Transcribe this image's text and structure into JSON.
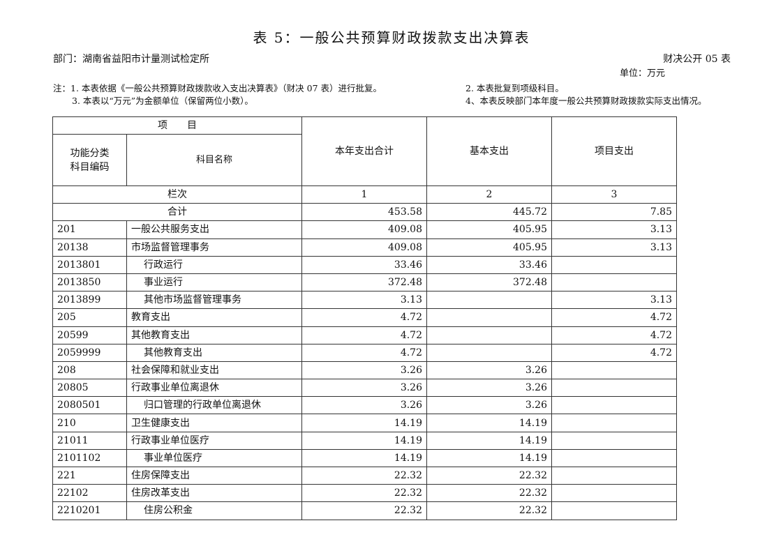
{
  "title": "表 5：一般公共预算财政拨款支出决算表",
  "department": "部门：湖南省益阳市计量测试检定所",
  "form_no": "财决公开 05 表",
  "unit": "单位：万元",
  "notes": [
    "注：1. 本表依据《一般公共预算财政拨款收入支出决算表》（财决 07 表）进行批复。",
    "2. 本表批复到项级科目。",
    "3. 本表以“万元”为金额单位（保留两位小数）。",
    "4、本表反映部门本年度一般公共预算财政拨款实际支出情况。"
  ],
  "table": {
    "header_item": "项　　目",
    "header_code": "功能分类\n科目编码",
    "header_code_line1": "功能分类",
    "header_code_line2": "科目编码",
    "header_name": "科目名称",
    "header_total": "本年支出合计",
    "header_basic": "基本支出",
    "header_project": "项目支出",
    "col_index_label": "栏次",
    "col_index": [
      "1",
      "2",
      "3"
    ],
    "total_label": "合计",
    "total": [
      "453.58",
      "445.72",
      "7.85"
    ],
    "rows": [
      {
        "code": "201",
        "name": "一般公共服务支出",
        "total": "409.08",
        "basic": "405.95",
        "project": "3.13"
      },
      {
        "code": "20138",
        "name": "市场监督管理事务",
        "total": "409.08",
        "basic": "405.95",
        "project": "3.13"
      },
      {
        "code": "2013801",
        "name": "行政运行",
        "total": "33.46",
        "basic": "33.46",
        "project": ""
      },
      {
        "code": "2013850",
        "name": "事业运行",
        "total": "372.48",
        "basic": "372.48",
        "project": ""
      },
      {
        "code": "2013899",
        "name": "其他市场监督管理事务",
        "total": "3.13",
        "basic": "",
        "project": "3.13"
      },
      {
        "code": "205",
        "name": "教育支出",
        "total": "4.72",
        "basic": "",
        "project": "4.72"
      },
      {
        "code": "20599",
        "name": "其他教育支出",
        "total": "4.72",
        "basic": "",
        "project": "4.72"
      },
      {
        "code": "2059999",
        "name": "其他教育支出",
        "total": "4.72",
        "basic": "",
        "project": "4.72"
      },
      {
        "code": "208",
        "name": "社会保障和就业支出",
        "total": "3.26",
        "basic": "3.26",
        "project": ""
      },
      {
        "code": "20805",
        "name": "行政事业单位离退休",
        "total": "3.26",
        "basic": "3.26",
        "project": ""
      },
      {
        "code": "2080501",
        "name": "归口管理的行政单位离退休",
        "total": "3.26",
        "basic": "3.26",
        "project": ""
      },
      {
        "code": "210",
        "name": "卫生健康支出",
        "total": "14.19",
        "basic": "14.19",
        "project": ""
      },
      {
        "code": "21011",
        "name": "行政事业单位医疗",
        "total": "14.19",
        "basic": "14.19",
        "project": ""
      },
      {
        "code": "2101102",
        "name": "事业单位医疗",
        "total": "14.19",
        "basic": "14.19",
        "project": ""
      },
      {
        "code": "221",
        "name": "住房保障支出",
        "total": "22.32",
        "basic": "22.32",
        "project": ""
      },
      {
        "code": "22102",
        "name": "住房改革支出",
        "total": "22.32",
        "basic": "22.32",
        "project": ""
      },
      {
        "code": "2210201",
        "name": "住房公积金",
        "total": "22.32",
        "basic": "22.32",
        "project": ""
      }
    ]
  }
}
